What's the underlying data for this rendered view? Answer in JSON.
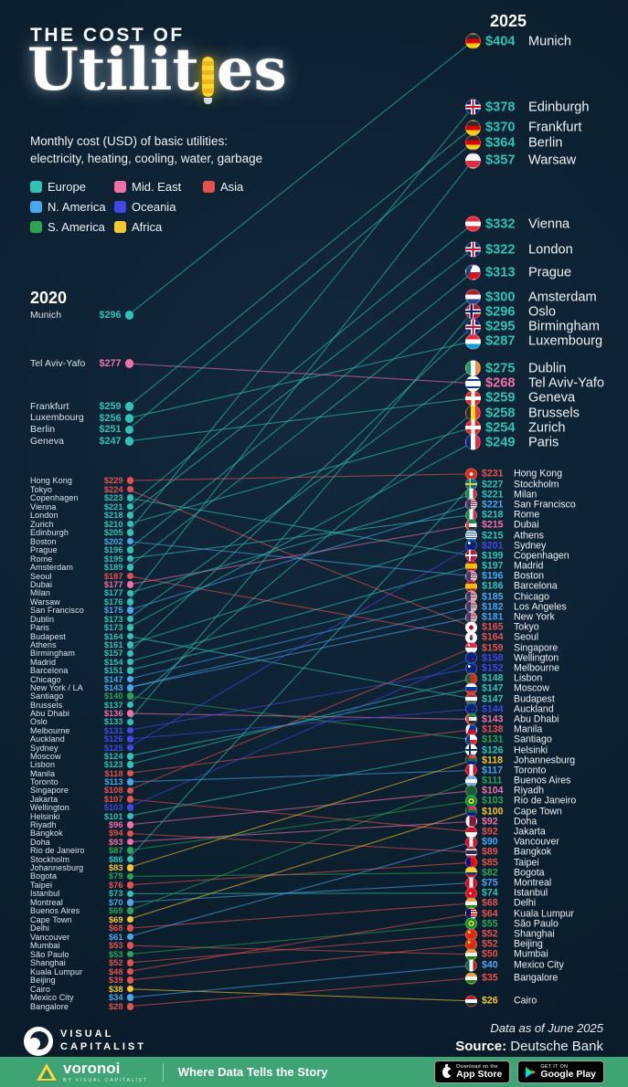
{
  "title": {
    "kicker": "THE COST OF",
    "word_start": "Utilit",
    "word_end": "es",
    "subtitle_line1": "Monthly cost (USD) of basic utilities:",
    "subtitle_line2": "electricity, heating, cooling, water, garbage"
  },
  "legend": {
    "items": [
      {
        "label": "Europe",
        "color": "#2fc2b6"
      },
      {
        "label": "Mid. East",
        "color": "#f170aa"
      },
      {
        "label": "Asia",
        "color": "#e5524d"
      },
      {
        "label": "N. America",
        "color": "#4aa7ec"
      },
      {
        "label": "Oceania",
        "color": "#4348e5"
      },
      {
        "label": "S. America",
        "color": "#2ca455"
      },
      {
        "label": "Africa",
        "color": "#f6c62d"
      }
    ]
  },
  "footer": {
    "brand_line1": "VISUAL",
    "brand_line2": "CAPITALIST",
    "data_note": "Data as of June 2025",
    "source_label": "Source:",
    "source_value": " Deutsche Bank"
  },
  "bottom_bar": {
    "brand": "voronoi",
    "brand_sub": "BY VISUAL CAPITALIST",
    "tagline": "Where Data Tells the Story",
    "appstore_line1": "Download on the",
    "appstore_line2": "App Store",
    "play_line1": "GET IT ON",
    "play_line2": "Google Play"
  },
  "chart_data": {
    "type": "slope",
    "title": "The Cost of Utilities",
    "unit": "USD per month",
    "left_header": "2020",
    "right_header": "2025",
    "value_range": [
      26,
      404
    ],
    "regions": [
      {
        "name": "Europe",
        "color": "#2fc2b6"
      },
      {
        "name": "Mid. East",
        "color": "#f170aa"
      },
      {
        "name": "Asia",
        "color": "#e5524d"
      },
      {
        "name": "N. America",
        "color": "#4aa7ec"
      },
      {
        "name": "Oceania",
        "color": "#4348e5"
      },
      {
        "name": "S. America",
        "color": "#2ca455"
      },
      {
        "name": "Africa",
        "color": "#f6c62d"
      }
    ],
    "links_special": {
      "New York / LA": [
        "New York",
        "Los Angeles"
      ]
    },
    "col_2020": [
      {
        "city": "Munich",
        "region": "Europe",
        "value": 296
      },
      {
        "city": "Tel Aviv-Yafo",
        "region": "Mid. East",
        "value": 277
      },
      {
        "city": "Frankfurt",
        "region": "Europe",
        "value": 259
      },
      {
        "city": "Luxembourg",
        "region": "Europe",
        "value": 256
      },
      {
        "city": "Berlin",
        "region": "Europe",
        "value": 251
      },
      {
        "city": "Geneva",
        "region": "Europe",
        "value": 247
      },
      {
        "city": "Hong Kong",
        "region": "Asia",
        "value": 229
      },
      {
        "city": "Tokyo",
        "region": "Asia",
        "value": 224
      },
      {
        "city": "Copenhagen",
        "region": "Europe",
        "value": 223
      },
      {
        "city": "Vienna",
        "region": "Europe",
        "value": 221
      },
      {
        "city": "London",
        "region": "Europe",
        "value": 218
      },
      {
        "city": "Zurich",
        "region": "Europe",
        "value": 210
      },
      {
        "city": "Edinburgh",
        "region": "Europe",
        "value": 205
      },
      {
        "city": "Boston",
        "region": "N. America",
        "value": 202
      },
      {
        "city": "Prague",
        "region": "Europe",
        "value": 196
      },
      {
        "city": "Rome",
        "region": "Europe",
        "value": 195
      },
      {
        "city": "Amsterdam",
        "region": "Europe",
        "value": 189
      },
      {
        "city": "Seoul",
        "region": "Asia",
        "value": 187
      },
      {
        "city": "Dubai",
        "region": "Mid. East",
        "value": 177
      },
      {
        "city": "Milan",
        "region": "Europe",
        "value": 177
      },
      {
        "city": "Warsaw",
        "region": "Europe",
        "value": 176
      },
      {
        "city": "San Francisco",
        "region": "N. America",
        "value": 175
      },
      {
        "city": "Dublin",
        "region": "Europe",
        "value": 173
      },
      {
        "city": "Paris",
        "region": "Europe",
        "value": 173
      },
      {
        "city": "Budapest",
        "region": "Europe",
        "value": 164
      },
      {
        "city": "Athens",
        "region": "Europe",
        "value": 161
      },
      {
        "city": "Birmingham",
        "region": "Europe",
        "value": 157
      },
      {
        "city": "Madrid",
        "region": "Europe",
        "value": 154
      },
      {
        "city": "Barcelona",
        "region": "Europe",
        "value": 151
      },
      {
        "city": "Chicago",
        "region": "N. America",
        "value": 147
      },
      {
        "city": "New York / LA",
        "region": "N. America",
        "value": 143
      },
      {
        "city": "Santiago",
        "region": "S. America",
        "value": 140
      },
      {
        "city": "Brussels",
        "region": "Europe",
        "value": 137
      },
      {
        "city": "Abu Dhabi",
        "region": "Mid. East",
        "value": 136
      },
      {
        "city": "Oslo",
        "region": "Europe",
        "value": 133
      },
      {
        "city": "Melbourne",
        "region": "Oceania",
        "value": 131
      },
      {
        "city": "Auckland",
        "region": "Oceania",
        "value": 126
      },
      {
        "city": "Sydney",
        "region": "Oceania",
        "value": 125
      },
      {
        "city": "Moscow",
        "region": "Europe",
        "value": 124
      },
      {
        "city": "Lisbon",
        "region": "Europe",
        "value": 123
      },
      {
        "city": "Manila",
        "region": "Asia",
        "value": 118
      },
      {
        "city": "Toronto",
        "region": "N. America",
        "value": 113
      },
      {
        "city": "Singapore",
        "region": "Asia",
        "value": 108
      },
      {
        "city": "Jakarta",
        "region": "Asia",
        "value": 107
      },
      {
        "city": "Wellington",
        "region": "Oceania",
        "value": 103
      },
      {
        "city": "Helsinki",
        "region": "Europe",
        "value": 101
      },
      {
        "city": "Riyadh",
        "region": "Mid. East",
        "value": 96
      },
      {
        "city": "Bangkok",
        "region": "Asia",
        "value": 94
      },
      {
        "city": "Doha",
        "region": "Mid. East",
        "value": 93
      },
      {
        "city": "Rio de Janeiro",
        "region": "S. America",
        "value": 87
      },
      {
        "city": "Stockholm",
        "region": "Europe",
        "value": 86
      },
      {
        "city": "Johannesburg",
        "region": "Africa",
        "value": 83
      },
      {
        "city": "Bogota",
        "region": "S. America",
        "value": 79
      },
      {
        "city": "Taipei",
        "region": "Asia",
        "value": 76
      },
      {
        "city": "Istanbul",
        "region": "Europe",
        "value": 73
      },
      {
        "city": "Montreal",
        "region": "N. America",
        "value": 70
      },
      {
        "city": "Buenos Aires",
        "region": "S. America",
        "value": 69
      },
      {
        "city": "Cape Town",
        "region": "Africa",
        "value": 69
      },
      {
        "city": "Delhi",
        "region": "Asia",
        "value": 68
      },
      {
        "city": "Vancouver",
        "region": "N. America",
        "value": 61
      },
      {
        "city": "Mumbai",
        "region": "Asia",
        "value": 53
      },
      {
        "city": "São Paulo",
        "region": "S. America",
        "value": 53
      },
      {
        "city": "Shanghai",
        "region": "Asia",
        "value": 52
      },
      {
        "city": "Kuala Lumpur",
        "region": "Asia",
        "value": 48
      },
      {
        "city": "Beijing",
        "region": "Asia",
        "value": 39
      },
      {
        "city": "Cairo",
        "region": "Africa",
        "value": 38
      },
      {
        "city": "Mexico City",
        "region": "N. America",
        "value": 34
      },
      {
        "city": "Bangalore",
        "region": "Asia",
        "value": 28
      }
    ],
    "col_2025": [
      {
        "city": "Munich",
        "region": "Europe",
        "country": "DE",
        "value": 404
      },
      {
        "city": "Edinburgh",
        "region": "Europe",
        "country": "GB",
        "value": 378
      },
      {
        "city": "Frankfurt",
        "region": "Europe",
        "country": "DE",
        "value": 370
      },
      {
        "city": "Berlin",
        "region": "Europe",
        "country": "DE",
        "value": 364
      },
      {
        "city": "Warsaw",
        "region": "Europe",
        "country": "PL",
        "value": 357
      },
      {
        "city": "Vienna",
        "region": "Europe",
        "country": "AT",
        "value": 332
      },
      {
        "city": "London",
        "region": "Europe",
        "country": "GB",
        "value": 322
      },
      {
        "city": "Prague",
        "region": "Europe",
        "country": "CZ",
        "value": 313
      },
      {
        "city": "Amsterdam",
        "region": "Europe",
        "country": "NL",
        "value": 300
      },
      {
        "city": "Oslo",
        "region": "Europe",
        "country": "NO",
        "value": 296
      },
      {
        "city": "Birmingham",
        "region": "Europe",
        "country": "GB",
        "value": 295
      },
      {
        "city": "Luxembourg",
        "region": "Europe",
        "country": "LU",
        "value": 287
      },
      {
        "city": "Dublin",
        "region": "Europe",
        "country": "IE",
        "value": 275
      },
      {
        "city": "Tel Aviv-Yafo",
        "region": "Mid. East",
        "country": "IL",
        "value": 268
      },
      {
        "city": "Geneva",
        "region": "Europe",
        "country": "CH",
        "value": 259
      },
      {
        "city": "Brussels",
        "region": "Europe",
        "country": "BE",
        "value": 258
      },
      {
        "city": "Zurich",
        "region": "Europe",
        "country": "CH",
        "value": 254
      },
      {
        "city": "Paris",
        "region": "Europe",
        "country": "FR",
        "value": 249
      },
      {
        "city": "Hong Kong",
        "region": "Asia",
        "country": "HK",
        "value": 231
      },
      {
        "city": "Stockholm",
        "region": "Europe",
        "country": "SE",
        "value": 227
      },
      {
        "city": "Milan",
        "region": "Europe",
        "country": "IT",
        "value": 221
      },
      {
        "city": "San Francisco",
        "region": "N. America",
        "country": "US",
        "value": 221
      },
      {
        "city": "Rome",
        "region": "Europe",
        "country": "IT",
        "value": 218
      },
      {
        "city": "Dubai",
        "region": "Mid. East",
        "country": "AE",
        "value": 215
      },
      {
        "city": "Athens",
        "region": "Europe",
        "country": "GR",
        "value": 215
      },
      {
        "city": "Sydney",
        "region": "Oceania",
        "country": "AU",
        "value": 201
      },
      {
        "city": "Copenhagen",
        "region": "Europe",
        "country": "DK",
        "value": 199
      },
      {
        "city": "Madrid",
        "region": "Europe",
        "country": "ES",
        "value": 197
      },
      {
        "city": "Boston",
        "region": "N. America",
        "country": "US",
        "value": 196
      },
      {
        "city": "Barcelona",
        "region": "Europe",
        "country": "ES",
        "value": 186
      },
      {
        "city": "Chicago",
        "region": "N. America",
        "country": "US",
        "value": 185
      },
      {
        "city": "Los Angeles",
        "region": "N. America",
        "country": "US",
        "value": 182
      },
      {
        "city": "New York",
        "region": "N. America",
        "country": "US",
        "value": 181
      },
      {
        "city": "Tokyo",
        "region": "Asia",
        "country": "JP",
        "value": 165
      },
      {
        "city": "Seoul",
        "region": "Asia",
        "country": "KR",
        "value": 164
      },
      {
        "city": "Singapore",
        "region": "Asia",
        "country": "SG",
        "value": 159
      },
      {
        "city": "Wellington",
        "region": "Oceania",
        "country": "NZ",
        "value": 158
      },
      {
        "city": "Melbourne",
        "region": "Oceania",
        "country": "AU",
        "value": 152
      },
      {
        "city": "Lisbon",
        "region": "Europe",
        "country": "PT",
        "value": 148
      },
      {
        "city": "Moscow",
        "region": "Europe",
        "country": "RU",
        "value": 147
      },
      {
        "city": "Budapest",
        "region": "Europe",
        "country": "HU",
        "value": 147
      },
      {
        "city": "Auckland",
        "region": "Oceania",
        "country": "NZ",
        "value": 144
      },
      {
        "city": "Abu Dhabi",
        "region": "Mid. East",
        "country": "AE",
        "value": 143
      },
      {
        "city": "Manila",
        "region": "Asia",
        "country": "PH",
        "value": 138
      },
      {
        "city": "Santiago",
        "region": "S. America",
        "country": "CL",
        "value": 131
      },
      {
        "city": "Helsinki",
        "region": "Europe",
        "country": "FI",
        "value": 126
      },
      {
        "city": "Johannesburg",
        "region": "Africa",
        "country": "ZA",
        "value": 118
      },
      {
        "city": "Toronto",
        "region": "N. America",
        "country": "CA",
        "value": 117
      },
      {
        "city": "Buenos Aires",
        "region": "S. America",
        "country": "AR",
        "value": 111
      },
      {
        "city": "Riyadh",
        "region": "Mid. East",
        "country": "SA",
        "value": 104
      },
      {
        "city": "Rio de Janeiro",
        "region": "S. America",
        "country": "BR",
        "value": 103
      },
      {
        "city": "Cape Town",
        "region": "Africa",
        "country": "ZA",
        "value": 100
      },
      {
        "city": "Doha",
        "region": "Mid. East",
        "country": "QA",
        "value": 92
      },
      {
        "city": "Jakarta",
        "region": "Asia",
        "country": "ID",
        "value": 92
      },
      {
        "city": "Vancouver",
        "region": "N. America",
        "country": "CA",
        "value": 90
      },
      {
        "city": "Bangkok",
        "region": "Asia",
        "country": "TH",
        "value": 89
      },
      {
        "city": "Taipei",
        "region": "Asia",
        "country": "TW",
        "value": 85
      },
      {
        "city": "Bogota",
        "region": "S. America",
        "country": "CO",
        "value": 82
      },
      {
        "city": "Montreal",
        "region": "N. America",
        "country": "CA",
        "value": 75
      },
      {
        "city": "Istanbul",
        "region": "Europe",
        "country": "TR",
        "value": 74
      },
      {
        "city": "Delhi",
        "region": "Asia",
        "country": "IN",
        "value": 68
      },
      {
        "city": "Kuala Lumpur",
        "region": "Asia",
        "country": "MY",
        "value": 64
      },
      {
        "city": "São Paulo",
        "region": "S. America",
        "country": "BR",
        "value": 55
      },
      {
        "city": "Shanghai",
        "region": "Asia",
        "country": "CN",
        "value": 52
      },
      {
        "city": "Beijing",
        "region": "Asia",
        "country": "CN",
        "value": 52
      },
      {
        "city": "Mumbai",
        "region": "Asia",
        "country": "IN",
        "value": 50
      },
      {
        "city": "Mexico City",
        "region": "N. America",
        "country": "MX",
        "value": 40
      },
      {
        "city": "Bangalore",
        "region": "Asia",
        "country": "IN",
        "value": 35
      },
      {
        "city": "Cairo",
        "region": "Africa",
        "country": "EG",
        "value": 26
      }
    ]
  }
}
